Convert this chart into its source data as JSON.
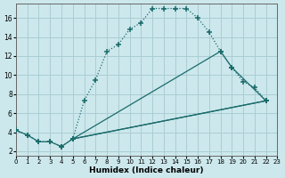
{
  "xlabel": "Humidex (Indice chaleur)",
  "xlim": [
    0,
    23
  ],
  "ylim": [
    1.5,
    17.5
  ],
  "xticks": [
    0,
    1,
    2,
    3,
    4,
    5,
    6,
    7,
    8,
    9,
    10,
    11,
    12,
    13,
    14,
    15,
    16,
    17,
    18,
    19,
    20,
    21,
    22,
    23
  ],
  "yticks": [
    2,
    4,
    6,
    8,
    10,
    12,
    14,
    16
  ],
  "bg_color": "#cce8ec",
  "grid_color": "#aacdd4",
  "line_color": "#1a6b6b",
  "curve1_x": [
    0,
    1,
    2,
    3,
    4,
    5,
    6,
    7,
    8,
    9,
    10,
    11,
    12,
    13,
    14,
    15,
    16,
    17,
    18,
    19,
    20,
    21,
    22
  ],
  "curve1_y": [
    4.2,
    3.7,
    3.0,
    3.0,
    2.5,
    3.3,
    7.3,
    9.5,
    12.5,
    13.2,
    14.8,
    15.5,
    17.0,
    17.0,
    17.0,
    17.0,
    16.0,
    14.5,
    12.5,
    10.8,
    9.3,
    8.7,
    7.3
  ],
  "line2_x": [
    0,
    1,
    2,
    3,
    4,
    5,
    22
  ],
  "line2_y": [
    4.2,
    3.7,
    3.0,
    3.0,
    2.5,
    3.3,
    7.3
  ],
  "line3_x": [
    5,
    18,
    19,
    22
  ],
  "line3_y": [
    3.3,
    12.5,
    10.8,
    7.3
  ],
  "line4_x": [
    5,
    22
  ],
  "line4_y": [
    3.3,
    7.3
  ]
}
